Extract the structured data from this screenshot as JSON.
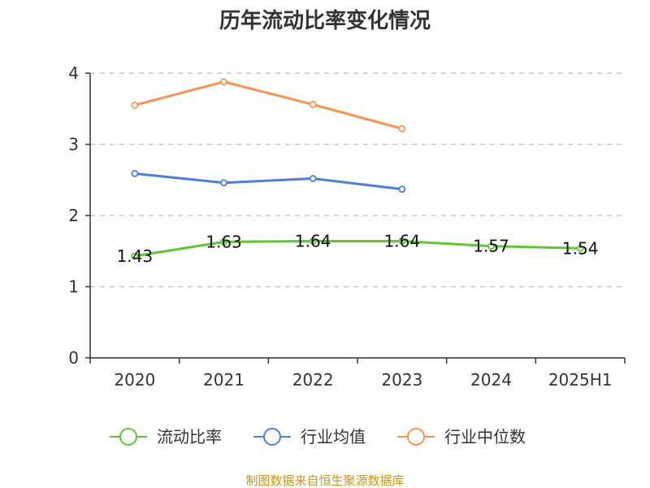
{
  "source_text": "制图数据来自恒生聚源数据库",
  "chart_data": {
    "type": "line",
    "title": "历年流动比率变化情况",
    "xlabel": "",
    "ylabel": "",
    "categories": [
      "2020",
      "2021",
      "2022",
      "2023",
      "2024",
      "2025H1"
    ],
    "ylim": [
      0,
      4
    ],
    "yticks": [
      "0",
      "1",
      "2",
      "3",
      "4"
    ],
    "grid": true,
    "legend_position": "bottom",
    "series": [
      {
        "name": "流动比率",
        "color": "#5cc72f",
        "values": [
          1.43,
          1.63,
          1.64,
          1.64,
          1.57,
          1.54
        ],
        "data_labels": [
          "1.43",
          "1.63",
          "1.64",
          "1.64",
          "1.57",
          "1.54"
        ]
      },
      {
        "name": "行业均值",
        "color": "#4d7fd8",
        "values": [
          2.59,
          2.46,
          2.52,
          2.37,
          null,
          null
        ]
      },
      {
        "name": "行业中位数",
        "color": "#f79454",
        "values": [
          3.55,
          3.88,
          3.56,
          3.22,
          null,
          null
        ]
      }
    ]
  }
}
